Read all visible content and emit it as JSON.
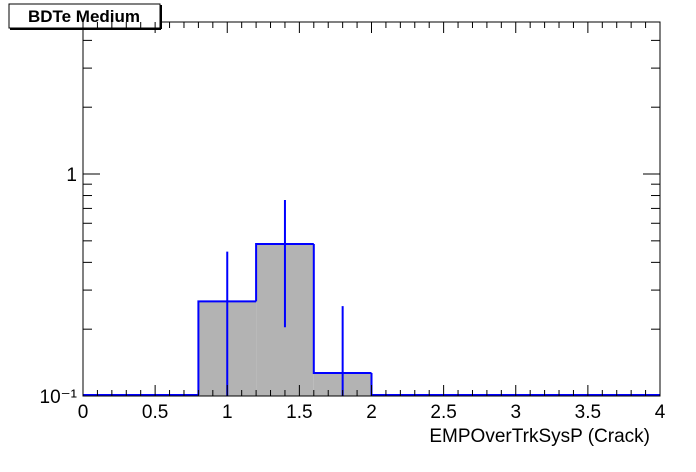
{
  "chart_data": {
    "type": "histogram",
    "title": "BDTe Medium",
    "x_label": "EMPOverTrkSysP (Crack)",
    "bins": [
      0,
      0.4,
      0.8,
      1.2,
      1.6,
      2.0,
      2.4,
      2.8,
      3.2,
      3.6,
      4.0
    ],
    "values": [
      0,
      0,
      0.267,
      0.484,
      0.127,
      0,
      0,
      0,
      0,
      0
    ],
    "errors": [
      0,
      0,
      0.18,
      0.28,
      0.127,
      0,
      0,
      0,
      0,
      0
    ],
    "fill_color": "#b3b3b3",
    "line_color": "#0000ff",
    "xlim": [
      0,
      4
    ],
    "xticks": [
      0,
      0.5,
      1,
      1.5,
      2,
      2.5,
      3,
      3.5,
      4
    ],
    "x_minor_ticks": [
      0.1,
      0.2,
      0.3,
      0.4,
      0.6,
      0.7,
      0.8,
      0.9,
      1.1,
      1.2,
      1.3,
      1.4,
      1.6,
      1.7,
      1.8,
      1.9,
      2.1,
      2.2,
      2.3,
      2.4,
      2.6,
      2.7,
      2.8,
      2.9,
      3.1,
      3.2,
      3.3,
      3.4,
      3.6,
      3.7,
      3.8,
      3.9
    ],
    "ylim": [
      0.1,
      4.84
    ],
    "y_log": true,
    "yticks": [
      {
        "value": 0.1,
        "label": "10⁻¹"
      },
      1
    ],
    "y_minor_ticks": [
      0.2,
      0.3,
      0.4,
      0.5,
      0.6,
      0.7,
      0.8,
      0.9,
      2,
      3,
      4
    ]
  }
}
